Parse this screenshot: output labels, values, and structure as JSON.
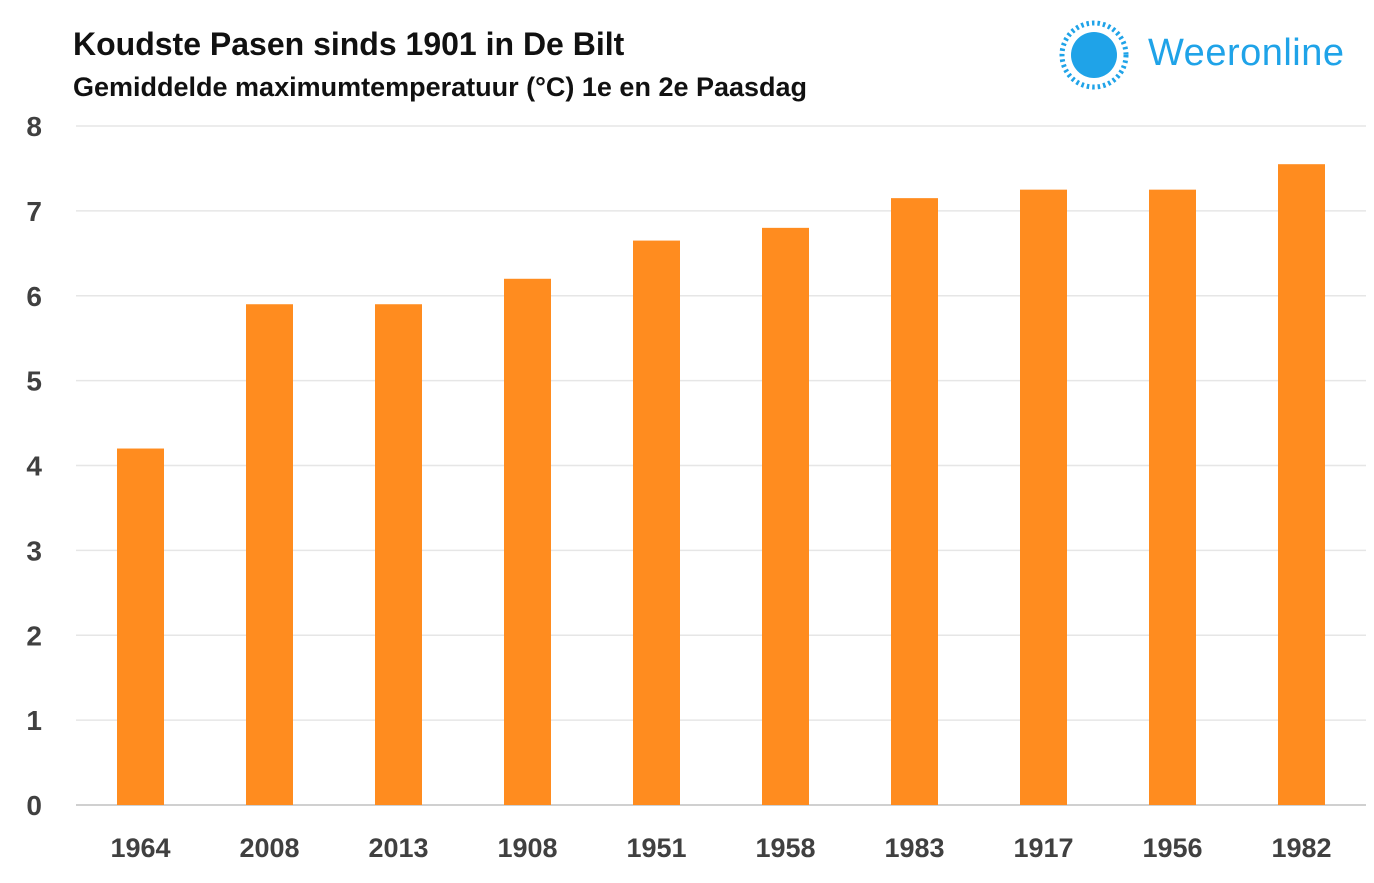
{
  "header": {
    "title": "Koudste Pasen sinds 1901 in De Bilt",
    "subtitle": "Gemiddelde maximumtemperatuur (°C) 1e en 2e Paasdag"
  },
  "logo": {
    "text": "Weeronline",
    "icon": "sun-icon",
    "color": "#1fa3e8"
  },
  "chart_data": {
    "type": "bar",
    "categories": [
      "1964",
      "2008",
      "2013",
      "1908",
      "1951",
      "1958",
      "1983",
      "1917",
      "1956",
      "1982"
    ],
    "values": [
      4.2,
      5.9,
      5.9,
      6.2,
      6.65,
      6.8,
      7.15,
      7.25,
      7.25,
      7.55
    ],
    "title": "Koudste Pasen sinds 1901 in De Bilt",
    "subtitle": "Gemiddelde maximumtemperatuur (°C) 1e en 2e Paasdag",
    "xlabel": "",
    "ylabel": "",
    "ylim": [
      0,
      8
    ],
    "yticks": [
      0,
      1,
      2,
      3,
      4,
      5,
      6,
      7,
      8
    ],
    "grid": true,
    "legend": "none",
    "bar_color": "#ff8c1f"
  }
}
